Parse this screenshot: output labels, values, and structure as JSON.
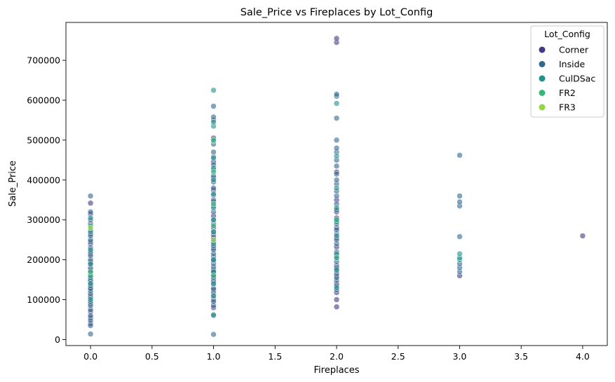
{
  "chart_data": {
    "type": "scatter",
    "title": "Sale_Price vs Fireplaces by Lot_Config",
    "xlabel": "Fireplaces",
    "ylabel": "Sale_Price",
    "xlim": [
      -0.2,
      4.2
    ],
    "ylim": [
      -15000,
      795000
    ],
    "xticks": [
      0.0,
      0.5,
      1.0,
      1.5,
      2.0,
      2.5,
      3.0,
      3.5,
      4.0
    ],
    "xtick_labels": [
      "0.0",
      "0.5",
      "1.0",
      "1.5",
      "2.0",
      "2.5",
      "3.0",
      "3.5",
      "4.0"
    ],
    "yticks": [
      0,
      100000,
      200000,
      300000,
      400000,
      500000,
      600000,
      700000
    ],
    "ytick_labels": [
      "0",
      "100000",
      "200000",
      "300000",
      "400000",
      "500000",
      "600000",
      "700000"
    ],
    "grid": false,
    "legend": {
      "title": "Lot_Config",
      "placement": "top-right"
    },
    "series": [
      {
        "name": "Corner",
        "color": "#443983",
        "points": [
          [
            0,
            40000
          ],
          [
            0,
            55000
          ],
          [
            0,
            70000
          ],
          [
            0,
            90000
          ],
          [
            0,
            110000
          ],
          [
            0,
            130000
          ],
          [
            0,
            150000
          ],
          [
            0,
            175000
          ],
          [
            0,
            195000
          ],
          [
            0,
            215000
          ],
          [
            0,
            240000
          ],
          [
            0,
            265000
          ],
          [
            0,
            290000
          ],
          [
            0,
            315000
          ],
          [
            0,
            342000
          ],
          [
            1,
            80000
          ],
          [
            1,
            100000
          ],
          [
            1,
            125000
          ],
          [
            1,
            150000
          ],
          [
            1,
            175000
          ],
          [
            1,
            200000
          ],
          [
            1,
            230000
          ],
          [
            1,
            255000
          ],
          [
            1,
            280000
          ],
          [
            1,
            310000
          ],
          [
            1,
            345000
          ],
          [
            1,
            375000
          ],
          [
            1,
            405000
          ],
          [
            1,
            445000
          ],
          [
            1,
            505000
          ],
          [
            2,
            82000
          ],
          [
            2,
            100000
          ],
          [
            2,
            118000
          ],
          [
            2,
            140000
          ],
          [
            2,
            160000
          ],
          [
            2,
            185000
          ],
          [
            2,
            210000
          ],
          [
            2,
            232000
          ],
          [
            2,
            255000
          ],
          [
            2,
            280000
          ],
          [
            2,
            305000
          ],
          [
            2,
            320000
          ],
          [
            2,
            350000
          ],
          [
            2,
            420000
          ],
          [
            2,
            745000
          ],
          [
            2,
            755000
          ],
          [
            3,
            160000
          ],
          [
            4,
            260000
          ]
        ]
      },
      {
        "name": "Inside",
        "color": "#31688e",
        "points": [
          [
            0,
            14000
          ],
          [
            0,
            35000
          ],
          [
            0,
            48000
          ],
          [
            0,
            60000
          ],
          [
            0,
            75000
          ],
          [
            0,
            85000
          ],
          [
            0,
            95000
          ],
          [
            0,
            105000
          ],
          [
            0,
            115000
          ],
          [
            0,
            122000
          ],
          [
            0,
            128000
          ],
          [
            0,
            135000
          ],
          [
            0,
            142000
          ],
          [
            0,
            148000
          ],
          [
            0,
            155000
          ],
          [
            0,
            160000
          ],
          [
            0,
            168000
          ],
          [
            0,
            180000
          ],
          [
            0,
            188000
          ],
          [
            0,
            200000
          ],
          [
            0,
            210000
          ],
          [
            0,
            220000
          ],
          [
            0,
            230000
          ],
          [
            0,
            245000
          ],
          [
            0,
            250000
          ],
          [
            0,
            260000
          ],
          [
            0,
            275000
          ],
          [
            0,
            300000
          ],
          [
            0,
            320000
          ],
          [
            0,
            360000
          ],
          [
            1,
            13000
          ],
          [
            1,
            60000
          ],
          [
            1,
            85000
          ],
          [
            1,
            95000
          ],
          [
            1,
            108000
          ],
          [
            1,
            118000
          ],
          [
            1,
            128000
          ],
          [
            1,
            138000
          ],
          [
            1,
            145000
          ],
          [
            1,
            155000
          ],
          [
            1,
            162000
          ],
          [
            1,
            170000
          ],
          [
            1,
            182000
          ],
          [
            1,
            190000
          ],
          [
            1,
            198000
          ],
          [
            1,
            208000
          ],
          [
            1,
            215000
          ],
          [
            1,
            225000
          ],
          [
            1,
            235000
          ],
          [
            1,
            245000
          ],
          [
            1,
            262000
          ],
          [
            1,
            270000
          ],
          [
            1,
            290000
          ],
          [
            1,
            300000
          ],
          [
            1,
            320000
          ],
          [
            1,
            335000
          ],
          [
            1,
            350000
          ],
          [
            1,
            362000
          ],
          [
            1,
            380000
          ],
          [
            1,
            395000
          ],
          [
            1,
            410000
          ],
          [
            1,
            425000
          ],
          [
            1,
            438000
          ],
          [
            1,
            458000
          ],
          [
            1,
            470000
          ],
          [
            1,
            490000
          ],
          [
            1,
            550000
          ],
          [
            1,
            558000
          ],
          [
            1,
            585000
          ],
          [
            2,
            125000
          ],
          [
            2,
            135000
          ],
          [
            2,
            148000
          ],
          [
            2,
            155000
          ],
          [
            2,
            165000
          ],
          [
            2,
            172000
          ],
          [
            2,
            180000
          ],
          [
            2,
            195000
          ],
          [
            2,
            205000
          ],
          [
            2,
            220000
          ],
          [
            2,
            240000
          ],
          [
            2,
            250000
          ],
          [
            2,
            265000
          ],
          [
            2,
            275000
          ],
          [
            2,
            290000
          ],
          [
            2,
            300000
          ],
          [
            2,
            325000
          ],
          [
            2,
            340000
          ],
          [
            2,
            360000
          ],
          [
            2,
            372000
          ],
          [
            2,
            390000
          ],
          [
            2,
            400000
          ],
          [
            2,
            415000
          ],
          [
            2,
            435000
          ],
          [
            2,
            450000
          ],
          [
            2,
            470000
          ],
          [
            2,
            480000
          ],
          [
            2,
            500000
          ],
          [
            2,
            555000
          ],
          [
            2,
            610000
          ],
          [
            2,
            615000
          ],
          [
            3,
            170000
          ],
          [
            3,
            180000
          ],
          [
            3,
            190000
          ],
          [
            3,
            258000
          ],
          [
            3,
            335000
          ],
          [
            3,
            345000
          ],
          [
            3,
            360000
          ],
          [
            3,
            462000
          ]
        ]
      },
      {
        "name": "CulDSac",
        "color": "#21918c",
        "points": [
          [
            0,
            100000
          ],
          [
            0,
            140000
          ],
          [
            0,
            190000
          ],
          [
            0,
            225000
          ],
          [
            0,
            270000
          ],
          [
            0,
            305000
          ],
          [
            1,
            62000
          ],
          [
            1,
            110000
          ],
          [
            1,
            140000
          ],
          [
            1,
            170000
          ],
          [
            1,
            200000
          ],
          [
            1,
            240000
          ],
          [
            1,
            270000
          ],
          [
            1,
            300000
          ],
          [
            1,
            330000
          ],
          [
            1,
            365000
          ],
          [
            1,
            400000
          ],
          [
            1,
            430000
          ],
          [
            1,
            455000
          ],
          [
            1,
            498000
          ],
          [
            1,
            535000
          ],
          [
            1,
            545000
          ],
          [
            1,
            625000
          ],
          [
            2,
            130000
          ],
          [
            2,
            175000
          ],
          [
            2,
            215000
          ],
          [
            2,
            260000
          ],
          [
            2,
            295000
          ],
          [
            2,
            330000
          ],
          [
            2,
            380000
          ],
          [
            2,
            460000
          ],
          [
            2,
            592000
          ],
          [
            3,
            200000
          ],
          [
            3,
            205000
          ],
          [
            3,
            215000
          ]
        ]
      },
      {
        "name": "FR2",
        "color": "#35b779",
        "points": [
          [
            0,
            160000
          ],
          [
            0,
            170000
          ],
          [
            0,
            285000
          ],
          [
            1,
            160000
          ],
          [
            1,
            285000
          ],
          [
            1,
            340000
          ],
          [
            1,
            420000
          ],
          [
            1,
            500000
          ],
          [
            2,
            205000
          ],
          [
            2,
            300000
          ]
        ]
      },
      {
        "name": "FR3",
        "color": "#90d743",
        "points": [
          [
            0,
            280000
          ],
          [
            1,
            250000
          ]
        ]
      }
    ]
  }
}
